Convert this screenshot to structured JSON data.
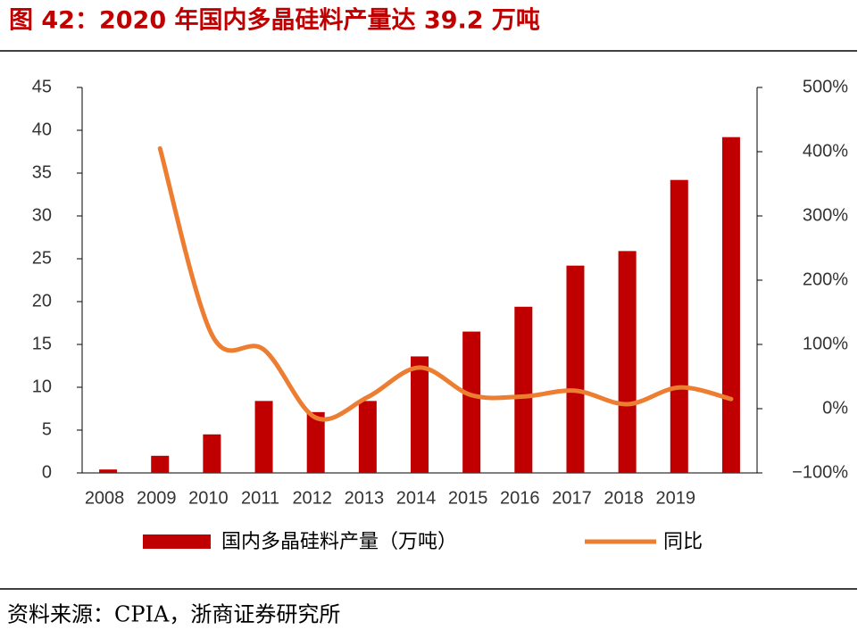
{
  "chart_data": {
    "type": "bar",
    "title": "图 42：2020 年国内多晶硅料产量达 39.2 万吨",
    "source": "资料来源：CPIA，浙商证券研究所",
    "categories": [
      "2008",
      "2009",
      "2010",
      "2011",
      "2012",
      "2013",
      "2014",
      "2015",
      "2016",
      "2017",
      "2018",
      "2019",
      null
    ],
    "series": [
      {
        "name": "国内多晶硅料产量（万吨）",
        "color": "#c00000",
        "type": "bar",
        "values": [
          0.4,
          2.0,
          4.5,
          8.4,
          7.1,
          8.4,
          13.6,
          16.5,
          19.4,
          24.2,
          25.9,
          34.2,
          39.2
        ]
      },
      {
        "name": "同比",
        "color": "#ed7d31",
        "type": "line",
        "axis": "y2",
        "values": [
          null,
          405,
          115,
          92,
          -14,
          18,
          64,
          21,
          19,
          28,
          7,
          33,
          15
        ]
      }
    ],
    "ylim": [
      0,
      45
    ],
    "yticks": [
      0,
      5,
      10,
      15,
      20,
      25,
      30,
      35,
      40,
      45
    ],
    "y2lim": [
      -100,
      500
    ],
    "y2ticks": [
      {
        "value": -100,
        "label": "−100%"
      },
      {
        "value": 0,
        "label": "0%"
      },
      {
        "value": 100,
        "label": "100%"
      },
      {
        "value": 200,
        "label": "200%"
      },
      {
        "value": 300,
        "label": "300%"
      },
      {
        "value": 400,
        "label": "400%"
      },
      {
        "value": 500,
        "label": "500%"
      }
    ],
    "grid": false,
    "legend": "bottom"
  }
}
